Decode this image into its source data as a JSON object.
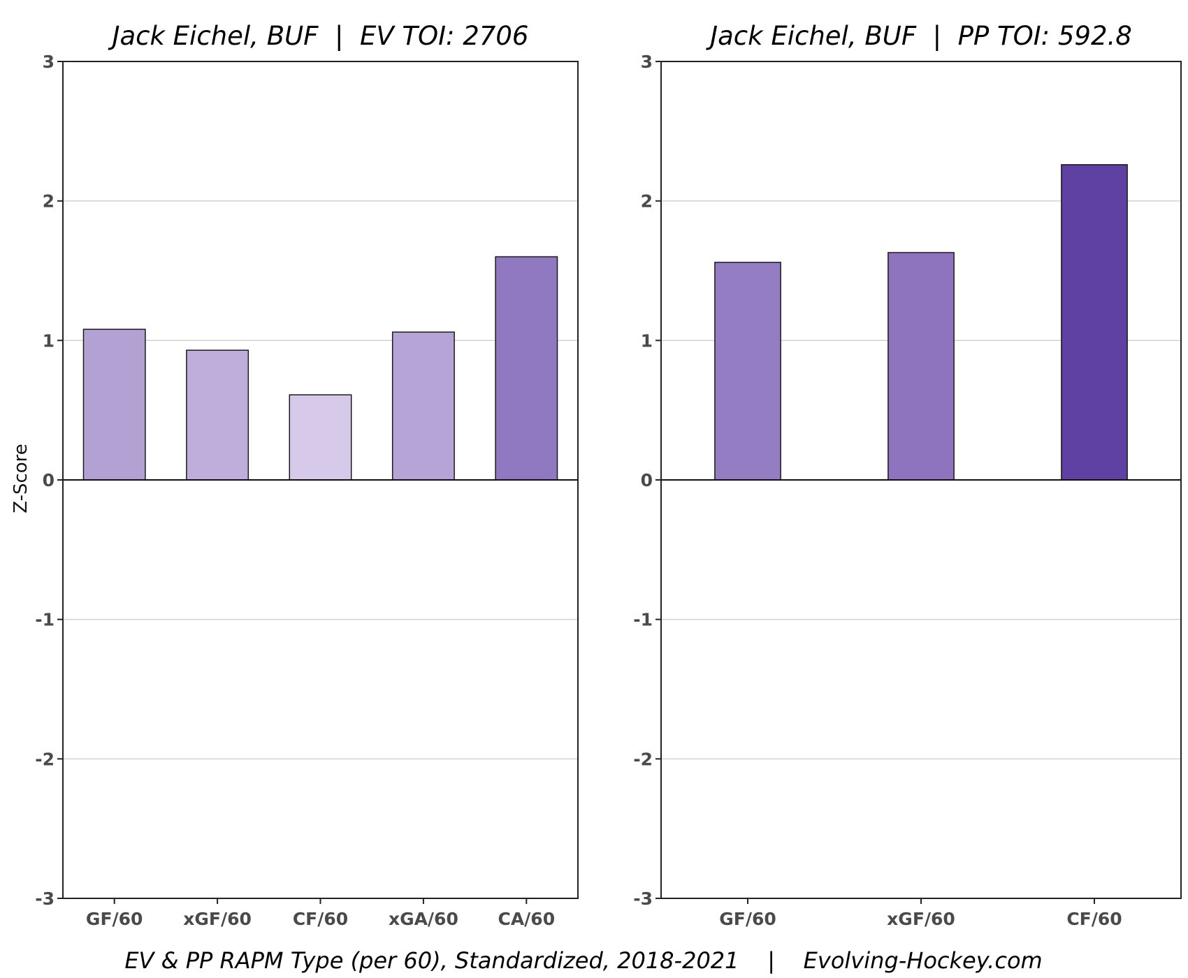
{
  "caption": "EV & PP RAPM Type (per 60), Standardized, 2018-2021    |    Evolving-Hockey.com",
  "y_axis_label": "Z-Score",
  "chart_data": [
    {
      "type": "bar",
      "title": "Jack Eichel, BUF  |  EV TOI: 2706",
      "categories": [
        "GF/60",
        "xGF/60",
        "CF/60",
        "xGA/60",
        "CA/60"
      ],
      "values": [
        1.08,
        0.93,
        0.61,
        1.06,
        1.6
      ],
      "colors": [
        "#b3a1d4",
        "#bfaedb",
        "#d7c9e9",
        "#b6a4d6",
        "#9079c1"
      ],
      "ylabel": "Z-Score",
      "ylim": [
        -3,
        3
      ],
      "yticks": [
        "-3",
        "-2",
        "-1",
        "0",
        "1",
        "2",
        "3"
      ],
      "grid": true
    },
    {
      "type": "bar",
      "title": "Jack Eichel, BUF  |  PP TOI: 592.8",
      "categories": [
        "GF/60",
        "xGF/60",
        "CF/60"
      ],
      "values": [
        1.56,
        1.63,
        2.26
      ],
      "colors": [
        "#957dc3",
        "#8e73bf",
        "#5f41a3"
      ],
      "ylim": [
        -3,
        3
      ],
      "yticks": [
        "-3",
        "-2",
        "-1",
        "0",
        "1",
        "2",
        "3"
      ],
      "grid": true
    }
  ]
}
